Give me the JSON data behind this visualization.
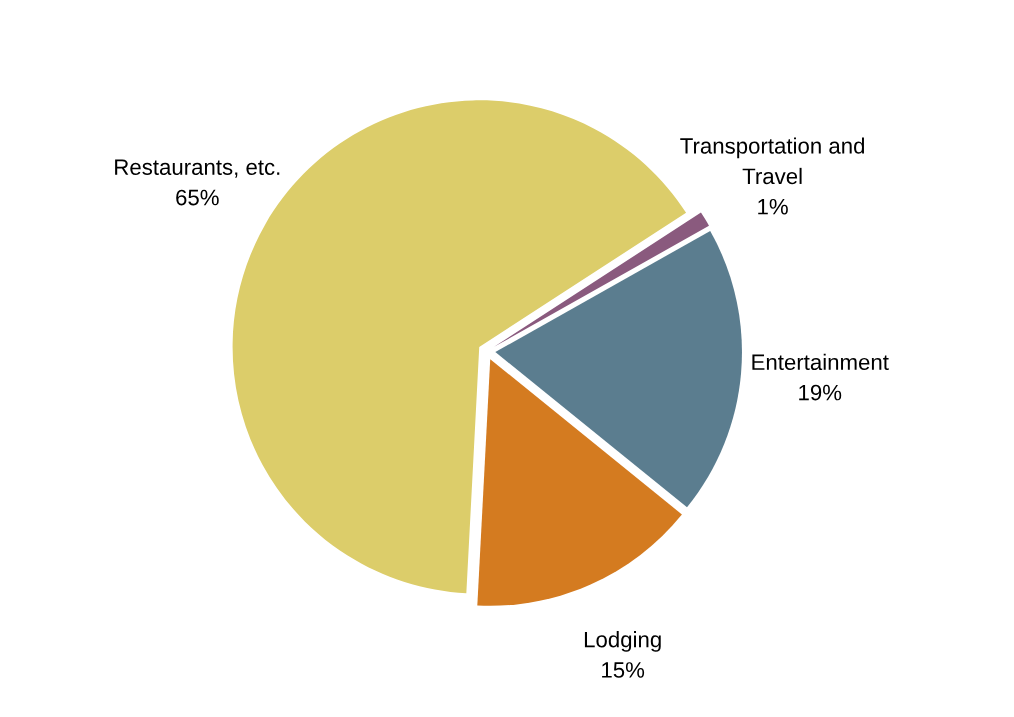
{
  "chart_data": {
    "type": "pie",
    "categories": [
      "Transportation and\nTravel",
      "Entertainment",
      "Lodging",
      "Restaurants, etc."
    ],
    "values": [
      1,
      19,
      15,
      65
    ],
    "value_labels": [
      "1%",
      "19%",
      "15%",
      "65%"
    ],
    "colors": [
      "#8a5a7e",
      "#5b7d8f",
      "#d47b20",
      "#dccd6a"
    ]
  }
}
